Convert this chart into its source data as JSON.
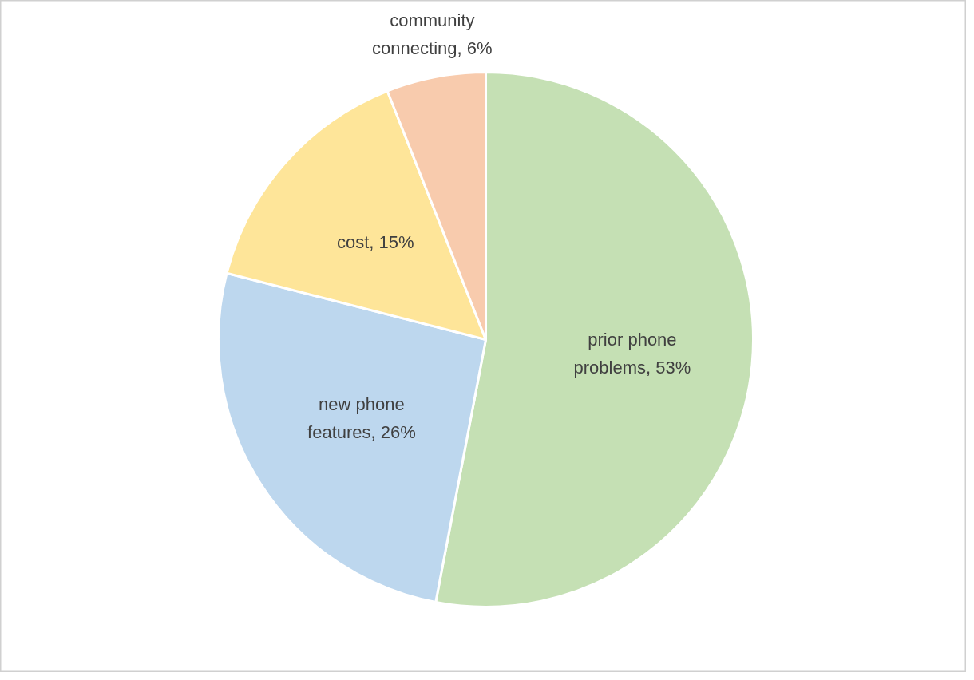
{
  "chart_data": {
    "type": "pie",
    "categories": [
      "prior phone problems",
      "new phone features",
      "cost",
      "community connecting"
    ],
    "values": [
      53,
      26,
      15,
      6
    ],
    "value_labels": [
      "53%",
      "26%",
      "15%",
      "6%"
    ],
    "colors": [
      "#c5e0b4",
      "#bdd7ee",
      "#fee599",
      "#f8cbad"
    ],
    "legend": false
  }
}
